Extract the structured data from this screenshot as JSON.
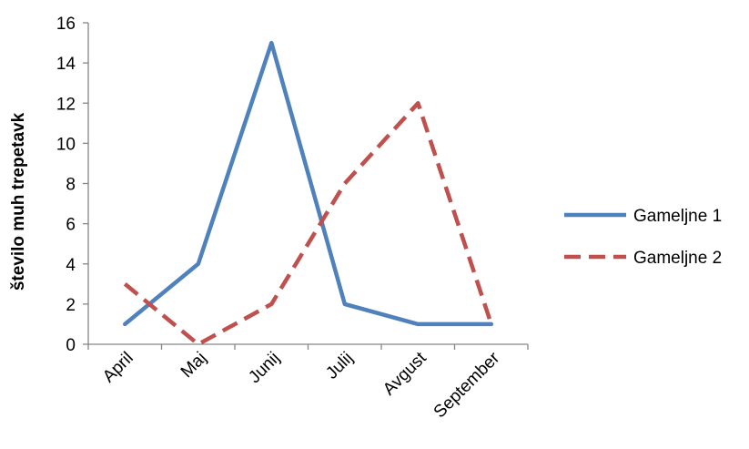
{
  "chart_data": {
    "type": "line",
    "title": "",
    "xlabel": "",
    "ylabel": "število muh trepetavk",
    "categories": [
      "April",
      "Maj",
      "Junij",
      "Julij",
      "Avgust",
      "September"
    ],
    "ylim": [
      0,
      16
    ],
    "yticks": [
      0,
      2,
      4,
      6,
      8,
      10,
      12,
      14,
      16
    ],
    "grid": false,
    "legend_position": "right",
    "series": [
      {
        "name": "Gameljne 1",
        "values": [
          1,
          4,
          15,
          2,
          1,
          1
        ],
        "color": "#4F81BD",
        "line_style": "solid"
      },
      {
        "name": "Gameljne 2",
        "values": [
          3,
          0,
          2,
          8,
          12,
          1
        ],
        "color": "#C0504D",
        "line_style": "dashed"
      }
    ]
  }
}
